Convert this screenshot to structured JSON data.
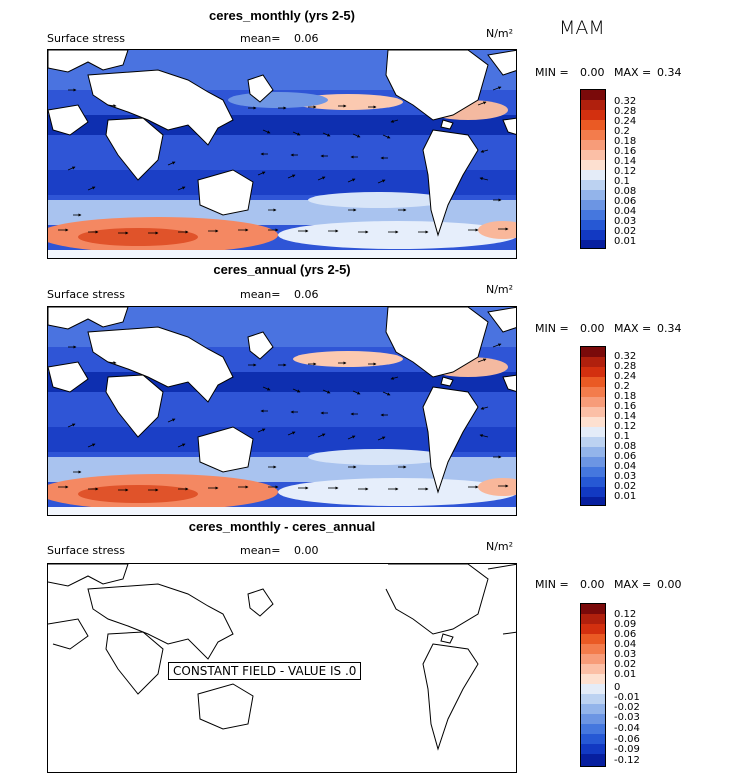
{
  "season": "MAM",
  "panels": [
    {
      "title": "ceres_monthly (yrs 2-5)",
      "field_label": "Surface stress",
      "mean_label": "mean=",
      "mean_value": "0.06",
      "units": "N/m²",
      "min_label": "MIN =",
      "min_value": "0.00",
      "max_label": "MAX =",
      "max_value": "0.34",
      "colorbar_labels": [
        "0.32",
        "0.28",
        "0.24",
        "0.2",
        "0.18",
        "0.16",
        "0.14",
        "0.12",
        "0.1",
        "0.08",
        "0.06",
        "0.04",
        "0.03",
        "0.02",
        "0.01"
      ]
    },
    {
      "title": "ceres_annual (yrs 2-5)",
      "field_label": "Surface stress",
      "mean_label": "mean=",
      "mean_value": "0.06",
      "units": "N/m²",
      "min_label": "MIN =",
      "min_value": "0.00",
      "max_label": "MAX =",
      "max_value": "0.34",
      "colorbar_labels": [
        "0.32",
        "0.28",
        "0.24",
        "0.2",
        "0.18",
        "0.16",
        "0.14",
        "0.12",
        "0.1",
        "0.08",
        "0.06",
        "0.04",
        "0.03",
        "0.02",
        "0.01"
      ]
    },
    {
      "title": "ceres_monthly - ceres_annual",
      "field_label": "Surface stress",
      "mean_label": "mean=",
      "mean_value": "0.00",
      "units": "N/m²",
      "min_label": "MIN =",
      "min_value": "0.00",
      "max_label": "MAX =",
      "max_value": "0.00",
      "constant_text": "CONSTANT FIELD - VALUE IS .0",
      "colorbar_labels": [
        "0.12",
        "0.09",
        "0.06",
        "0.04",
        "0.03",
        "0.02",
        "0.01",
        "0",
        "-0.01",
        "-0.02",
        "-0.03",
        "-0.04",
        "-0.06",
        "-0.09",
        "-0.12"
      ]
    }
  ],
  "colorbar_colors": [
    "#7a0a0a",
    "#b0200d",
    "#d3300f",
    "#ea5a24",
    "#f37c4c",
    "#f79c79",
    "#fbbfa6",
    "#fde0d0",
    "#e4ecf8",
    "#bcd2f1",
    "#93b4ea",
    "#6c95e3",
    "#4577de",
    "#2658d4",
    "#1239c2",
    "#071f9f"
  ]
}
